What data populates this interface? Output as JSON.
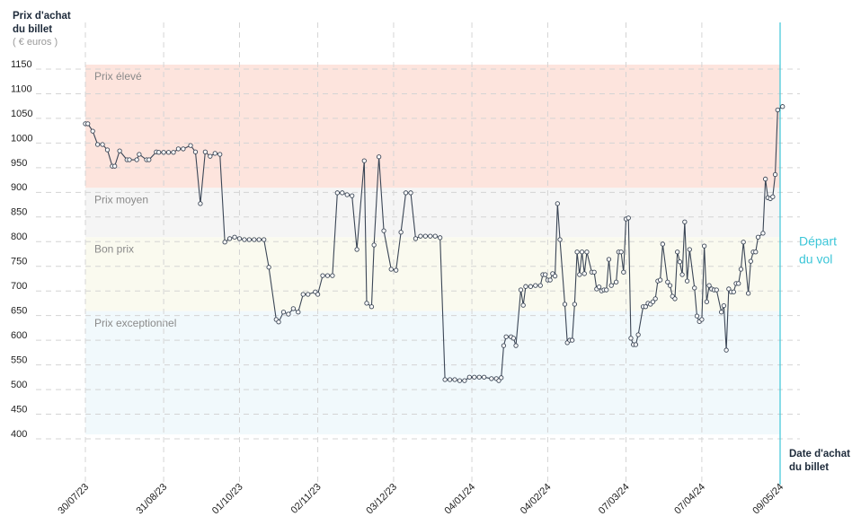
{
  "chart_data": {
    "type": "line",
    "ylabel": [
      "Prix d'achat",
      "du billet"
    ],
    "yunit": "( € euros )",
    "xlabel": [
      "Date d'achat",
      "du billet"
    ],
    "annotation": [
      "Départ",
      "du vol"
    ],
    "ylim": [
      400,
      1150
    ],
    "yticks": [
      400,
      450,
      500,
      550,
      600,
      650,
      700,
      750,
      800,
      850,
      900,
      950,
      1000,
      1050,
      1100,
      1150
    ],
    "xlim": [
      0,
      284
    ],
    "xticks": [
      {
        "value": 0,
        "label": "30/07/23"
      },
      {
        "value": 32,
        "label": "31/08/23"
      },
      {
        "value": 63,
        "label": "01/10/23"
      },
      {
        "value": 95,
        "label": "02/11/23"
      },
      {
        "value": 126,
        "label": "03/12/23"
      },
      {
        "value": 158,
        "label": "04/01/24"
      },
      {
        "value": 189,
        "label": "04/02/24"
      },
      {
        "value": 221,
        "label": "07/03/24"
      },
      {
        "value": 252,
        "label": "07/04/24"
      },
      {
        "value": 284,
        "label": "09/05/24"
      }
    ],
    "grid": true,
    "zones": [
      {
        "name": "Prix élevé",
        "from": 900,
        "to": 1150,
        "color": "#fde4dd"
      },
      {
        "name": "Prix moyen",
        "from": 800,
        "to": 900,
        "color": "#f5f5f5"
      },
      {
        "name": "Bon prix",
        "from": 650,
        "to": 800,
        "color": "#fafaef"
      },
      {
        "name": "Prix exceptionnel",
        "from": 400,
        "to": 650,
        "color": "#f1f9fc"
      }
    ],
    "series": [
      {
        "color": "#3b4656",
        "x": [
          0,
          1,
          3,
          5,
          7,
          9,
          11,
          12,
          14,
          17,
          18,
          21,
          22,
          25,
          26,
          29,
          30,
          32,
          34,
          36,
          38,
          40,
          43,
          45,
          47,
          49,
          51,
          53,
          55,
          57,
          59,
          61,
          63,
          65,
          67,
          69,
          71,
          73,
          75,
          78,
          79,
          81,
          83,
          85,
          87,
          89,
          91,
          94,
          95,
          97,
          99,
          101,
          103,
          105,
          107,
          109,
          111,
          114,
          115,
          117,
          118,
          120,
          122,
          125,
          127,
          129,
          131,
          133,
          135,
          137,
          139,
          141,
          143,
          145,
          147,
          149,
          151,
          153,
          155,
          157,
          159,
          161,
          163,
          166,
          168,
          169,
          170,
          171,
          172,
          174,
          175,
          176,
          178,
          179,
          180,
          182,
          184,
          186,
          187,
          188,
          189,
          190,
          191,
          192,
          193,
          194,
          196,
          197,
          198,
          199,
          200,
          201,
          202,
          203,
          204,
          205,
          207,
          208,
          209,
          210,
          211,
          212,
          213,
          214,
          215,
          217,
          218,
          219,
          220,
          221,
          222,
          223,
          224,
          225,
          226,
          228,
          229,
          230,
          231,
          232,
          233,
          234,
          235,
          236,
          238,
          239,
          240,
          241,
          242,
          243,
          244,
          245,
          246,
          247,
          249,
          250,
          251,
          252,
          253,
          254,
          255,
          256,
          257,
          258,
          260,
          261,
          262,
          263,
          264,
          265,
          266,
          267,
          268,
          269,
          271,
          272,
          273,
          274,
          275,
          277,
          278,
          279,
          280,
          281,
          282,
          283,
          285
        ],
        "values": [
          1030,
          1030,
          1015,
          988,
          988,
          977,
          944,
          944,
          975,
          957,
          957,
          957,
          968,
          957,
          957,
          973,
          972,
          972,
          972,
          972,
          979,
          979,
          986,
          973,
          868,
          973,
          964,
          970,
          968,
          790,
          797,
          800,
          797,
          795,
          795,
          795,
          795,
          795,
          739,
          633,
          628,
          648,
          644,
          655,
          648,
          684,
          684,
          689,
          684,
          722,
          722,
          722,
          890,
          890,
          886,
          884,
          775,
          955,
          666,
          659,
          784,
          963,
          813,
          735,
          733,
          810,
          890,
          890,
          797,
          802,
          802,
          802,
          802,
          799,
          511,
          511,
          511,
          509,
          509,
          516,
          516,
          516,
          516,
          513,
          513,
          509,
          515,
          580,
          598,
          598,
          595,
          580,
          693,
          662,
          700,
          700,
          702,
          702,
          724,
          724,
          713,
          713,
          726,
          721,
          868,
          795,
          664,
          586,
          591,
          591,
          664,
          770,
          724,
          770,
          726,
          770,
          729,
          729,
          695,
          699,
          691,
          693,
          693,
          755,
          702,
          709,
          770,
          770,
          729,
          837,
          839,
          595,
          582,
          582,
          602,
          659,
          659,
          666,
          664,
          669,
          675,
          711,
          713,
          786,
          709,
          702,
          680,
          675,
          770,
          750,
          724,
          831,
          711,
          775,
          697,
          640,
          629,
          633,
          782,
          669,
          702,
          695,
          693,
          693,
          648,
          661,
          571,
          695,
          689,
          689,
          706,
          706,
          735,
          790,
          686,
          751,
          770,
          770,
          800,
          808,
          918,
          880,
          878,
          882,
          927,
          1058,
          1065
        ]
      }
    ]
  }
}
